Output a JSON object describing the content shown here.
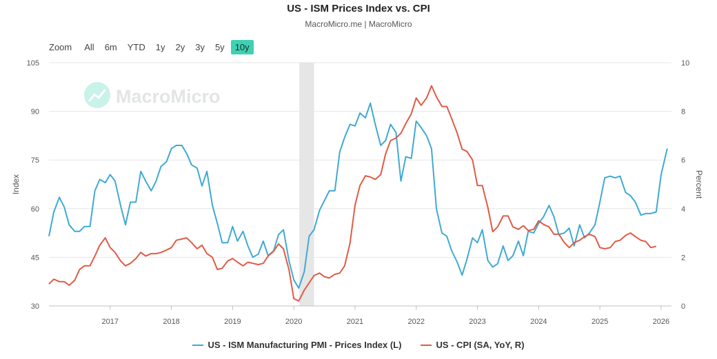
{
  "title": "US - ISM Prices Index vs. CPI",
  "subtitle": "MacroMicro.me | MacroMicro",
  "watermark": "MacroMicro",
  "zoom": {
    "label": "Zoom",
    "buttons": [
      "All",
      "6m",
      "YTD",
      "1y",
      "2y",
      "3y",
      "5y",
      "10y"
    ],
    "active": "10y"
  },
  "colors": {
    "ism": "#3fa9d2",
    "cpi": "#e05a43",
    "recession": "#e6e6e6",
    "grid": "#e6e6e6",
    "accent": "#3fd1b2"
  },
  "chart_data": {
    "type": "line",
    "title": "US - ISM Prices Index vs. CPI",
    "xlabel": "",
    "ylabel": "Index",
    "ylabel_right": "Percent",
    "xlim": [
      2016.0,
      2026.17
    ],
    "ylim": [
      30,
      105
    ],
    "ylim_right": [
      0,
      10
    ],
    "left_ticks": [
      30,
      45,
      60,
      75,
      90,
      105
    ],
    "right_ticks": [
      0,
      2,
      4,
      6,
      8,
      10
    ],
    "x_ticks": [
      {
        "v": 2017,
        "label": "2017"
      },
      {
        "v": 2018,
        "label": "2018"
      },
      {
        "v": 2019,
        "label": "2019"
      },
      {
        "v": 2020,
        "label": "2020"
      },
      {
        "v": 2021,
        "label": "2021"
      },
      {
        "v": 2022,
        "label": "2022"
      },
      {
        "v": 2023,
        "label": "2023"
      },
      {
        "v": 2024,
        "label": "2024"
      },
      {
        "v": 2025,
        "label": "2025"
      },
      {
        "v": 2026,
        "label": "2026"
      }
    ],
    "recession": [
      2020.09,
      2020.33
    ],
    "series": [
      {
        "name": "US - ISM Manufacturing PMI - Prices Index (L)",
        "axis": "left",
        "color": "#3fa9d2",
        "points": [
          [
            2016.0,
            51.5
          ],
          [
            2016.08,
            59.0
          ],
          [
            2016.17,
            63.5
          ],
          [
            2016.25,
            60.5
          ],
          [
            2016.33,
            55.0
          ],
          [
            2016.42,
            53.0
          ],
          [
            2016.5,
            53.0
          ],
          [
            2016.58,
            54.5
          ],
          [
            2016.67,
            54.5
          ],
          [
            2016.75,
            65.5
          ],
          [
            2016.83,
            69.0
          ],
          [
            2016.92,
            68.0
          ],
          [
            2017.0,
            70.5
          ],
          [
            2017.08,
            68.5
          ],
          [
            2017.17,
            61.0
          ],
          [
            2017.25,
            55.0
          ],
          [
            2017.33,
            62.0
          ],
          [
            2017.42,
            62.0
          ],
          [
            2017.5,
            71.5
          ],
          [
            2017.58,
            68.5
          ],
          [
            2017.67,
            65.5
          ],
          [
            2017.75,
            68.5
          ],
          [
            2017.83,
            73.0
          ],
          [
            2017.92,
            74.5
          ],
          [
            2018.0,
            78.5
          ],
          [
            2018.08,
            79.5
          ],
          [
            2018.17,
            79.5
          ],
          [
            2018.25,
            77.0
          ],
          [
            2018.33,
            73.5
          ],
          [
            2018.42,
            72.5
          ],
          [
            2018.5,
            67.0
          ],
          [
            2018.58,
            71.5
          ],
          [
            2018.67,
            61.0
          ],
          [
            2018.75,
            55.5
          ],
          [
            2018.83,
            49.5
          ],
          [
            2018.92,
            49.5
          ],
          [
            2019.0,
            54.5
          ],
          [
            2019.08,
            50.0
          ],
          [
            2019.17,
            53.0
          ],
          [
            2019.25,
            48.5
          ],
          [
            2019.33,
            45.0
          ],
          [
            2019.42,
            46.0
          ],
          [
            2019.5,
            50.0
          ],
          [
            2019.58,
            45.5
          ],
          [
            2019.67,
            47.0
          ],
          [
            2019.75,
            52.0
          ],
          [
            2019.83,
            53.5
          ],
          [
            2019.92,
            44.0
          ],
          [
            2020.0,
            38.0
          ],
          [
            2020.08,
            35.5
          ],
          [
            2020.17,
            40.5
          ],
          [
            2020.25,
            51.5
          ],
          [
            2020.33,
            53.5
          ],
          [
            2020.42,
            59.5
          ],
          [
            2020.5,
            62.5
          ],
          [
            2020.58,
            65.5
          ],
          [
            2020.67,
            65.5
          ],
          [
            2020.75,
            77.5
          ],
          [
            2020.83,
            82.0
          ],
          [
            2020.92,
            86.0
          ],
          [
            2021.0,
            85.5
          ],
          [
            2021.08,
            89.5
          ],
          [
            2021.17,
            88.0
          ],
          [
            2021.25,
            92.5
          ],
          [
            2021.33,
            86.0
          ],
          [
            2021.42,
            79.5
          ],
          [
            2021.5,
            81.0
          ],
          [
            2021.58,
            86.0
          ],
          [
            2021.67,
            83.5
          ],
          [
            2021.75,
            68.5
          ],
          [
            2021.83,
            76.0
          ],
          [
            2021.92,
            75.5
          ],
          [
            2022.0,
            87.0
          ],
          [
            2022.08,
            85.0
          ],
          [
            2022.17,
            82.5
          ],
          [
            2022.25,
            78.5
          ],
          [
            2022.33,
            60.0
          ],
          [
            2022.42,
            52.5
          ],
          [
            2022.5,
            51.5
          ],
          [
            2022.58,
            47.0
          ],
          [
            2022.67,
            43.5
          ],
          [
            2022.75,
            39.5
          ],
          [
            2022.83,
            44.5
          ],
          [
            2022.92,
            51.0
          ],
          [
            2023.0,
            49.5
          ],
          [
            2023.08,
            53.5
          ],
          [
            2023.17,
            44.0
          ],
          [
            2023.25,
            42.0
          ],
          [
            2023.33,
            43.0
          ],
          [
            2023.42,
            48.5
          ],
          [
            2023.5,
            44.0
          ],
          [
            2023.58,
            45.5
          ],
          [
            2023.67,
            50.0
          ],
          [
            2023.75,
            45.5
          ],
          [
            2023.83,
            53.0
          ],
          [
            2023.92,
            52.5
          ],
          [
            2024.0,
            55.5
          ],
          [
            2024.08,
            57.5
          ],
          [
            2024.17,
            61.0
          ],
          [
            2024.25,
            57.5
          ],
          [
            2024.33,
            52.0
          ],
          [
            2024.42,
            52.5
          ],
          [
            2024.5,
            54.0
          ],
          [
            2024.58,
            48.5
          ],
          [
            2024.67,
            55.0
          ],
          [
            2024.75,
            51.0
          ],
          [
            2024.83,
            52.5
          ],
          [
            2024.92,
            55.0
          ],
          [
            2025.0,
            62.0
          ],
          [
            2025.08,
            69.5
          ],
          [
            2025.17,
            70.0
          ],
          [
            2025.25,
            69.5
          ],
          [
            2025.33,
            70.0
          ],
          [
            2025.42,
            65.0
          ],
          [
            2025.5,
            64.0
          ],
          [
            2025.58,
            62.0
          ],
          [
            2025.67,
            58.0
          ],
          [
            2025.75,
            58.5
          ],
          [
            2025.83,
            58.5
          ],
          [
            2025.92,
            59.0
          ],
          [
            2026.0,
            70.5
          ],
          [
            2026.1,
            78.5
          ]
        ]
      },
      {
        "name": "US - CPI (SA, YoY, R)",
        "axis": "right",
        "color": "#e05a43",
        "points": [
          [
            2016.0,
            0.9
          ],
          [
            2016.08,
            1.1
          ],
          [
            2016.17,
            1.0
          ],
          [
            2016.25,
            1.0
          ],
          [
            2016.33,
            0.85
          ],
          [
            2016.42,
            1.05
          ],
          [
            2016.5,
            1.5
          ],
          [
            2016.58,
            1.65
          ],
          [
            2016.67,
            1.65
          ],
          [
            2016.75,
            2.05
          ],
          [
            2016.83,
            2.5
          ],
          [
            2016.92,
            2.8
          ],
          [
            2017.0,
            2.4
          ],
          [
            2017.08,
            2.2
          ],
          [
            2017.17,
            1.85
          ],
          [
            2017.25,
            1.65
          ],
          [
            2017.33,
            1.75
          ],
          [
            2017.42,
            1.95
          ],
          [
            2017.5,
            2.2
          ],
          [
            2017.58,
            2.05
          ],
          [
            2017.67,
            2.15
          ],
          [
            2017.75,
            2.15
          ],
          [
            2017.83,
            2.2
          ],
          [
            2017.92,
            2.3
          ],
          [
            2018.0,
            2.4
          ],
          [
            2018.08,
            2.7
          ],
          [
            2018.17,
            2.75
          ],
          [
            2018.25,
            2.8
          ],
          [
            2018.33,
            2.6
          ],
          [
            2018.42,
            2.35
          ],
          [
            2018.5,
            2.5
          ],
          [
            2018.58,
            2.15
          ],
          [
            2018.67,
            2.0
          ],
          [
            2018.75,
            1.5
          ],
          [
            2018.83,
            1.55
          ],
          [
            2018.92,
            1.85
          ],
          [
            2019.0,
            1.95
          ],
          [
            2019.08,
            1.8
          ],
          [
            2019.17,
            1.65
          ],
          [
            2019.25,
            1.8
          ],
          [
            2019.33,
            1.75
          ],
          [
            2019.42,
            1.7
          ],
          [
            2019.5,
            1.75
          ],
          [
            2019.58,
            2.05
          ],
          [
            2019.67,
            2.25
          ],
          [
            2019.75,
            2.55
          ],
          [
            2019.83,
            2.35
          ],
          [
            2019.92,
            1.5
          ],
          [
            2020.0,
            0.3
          ],
          [
            2020.08,
            0.2
          ],
          [
            2020.17,
            0.65
          ],
          [
            2020.25,
            0.95
          ],
          [
            2020.33,
            1.25
          ],
          [
            2020.42,
            1.35
          ],
          [
            2020.5,
            1.2
          ],
          [
            2020.58,
            1.15
          ],
          [
            2020.67,
            1.3
          ],
          [
            2020.75,
            1.35
          ],
          [
            2020.83,
            1.65
          ],
          [
            2020.92,
            2.6
          ],
          [
            2021.0,
            4.15
          ],
          [
            2021.08,
            4.95
          ],
          [
            2021.17,
            5.35
          ],
          [
            2021.25,
            5.3
          ],
          [
            2021.33,
            5.2
          ],
          [
            2021.42,
            5.4
          ],
          [
            2021.5,
            6.25
          ],
          [
            2021.58,
            6.8
          ],
          [
            2021.67,
            6.9
          ],
          [
            2021.75,
            7.1
          ],
          [
            2021.83,
            7.5
          ],
          [
            2021.92,
            7.9
          ],
          [
            2022.0,
            8.55
          ],
          [
            2022.08,
            8.25
          ],
          [
            2022.17,
            8.55
          ],
          [
            2022.25,
            9.05
          ],
          [
            2022.33,
            8.6
          ],
          [
            2022.42,
            8.2
          ],
          [
            2022.5,
            8.2
          ],
          [
            2022.58,
            7.7
          ],
          [
            2022.67,
            7.1
          ],
          [
            2022.75,
            6.45
          ],
          [
            2022.83,
            6.35
          ],
          [
            2022.92,
            6.0
          ],
          [
            2023.0,
            4.95
          ],
          [
            2023.08,
            4.95
          ],
          [
            2023.17,
            4.05
          ],
          [
            2023.25,
            3.05
          ],
          [
            2023.33,
            3.25
          ],
          [
            2023.42,
            3.7
          ],
          [
            2023.5,
            3.7
          ],
          [
            2023.58,
            3.25
          ],
          [
            2023.67,
            3.15
          ],
          [
            2023.75,
            3.3
          ],
          [
            2023.83,
            3.1
          ],
          [
            2023.92,
            3.15
          ],
          [
            2024.0,
            3.5
          ],
          [
            2024.08,
            3.35
          ],
          [
            2024.17,
            3.25
          ],
          [
            2024.25,
            2.95
          ],
          [
            2024.33,
            2.95
          ],
          [
            2024.42,
            2.6
          ],
          [
            2024.5,
            2.4
          ],
          [
            2024.58,
            2.6
          ],
          [
            2024.67,
            2.7
          ],
          [
            2024.75,
            2.85
          ],
          [
            2024.83,
            2.95
          ],
          [
            2024.92,
            2.85
          ],
          [
            2025.0,
            2.4
          ],
          [
            2025.08,
            2.35
          ],
          [
            2025.17,
            2.4
          ],
          [
            2025.25,
            2.65
          ],
          [
            2025.33,
            2.7
          ],
          [
            2025.42,
            2.9
          ],
          [
            2025.5,
            3.0
          ],
          [
            2025.58,
            2.85
          ],
          [
            2025.67,
            2.7
          ],
          [
            2025.75,
            2.65
          ],
          [
            2025.83,
            2.4
          ],
          [
            2025.92,
            2.45
          ]
        ]
      }
    ]
  }
}
